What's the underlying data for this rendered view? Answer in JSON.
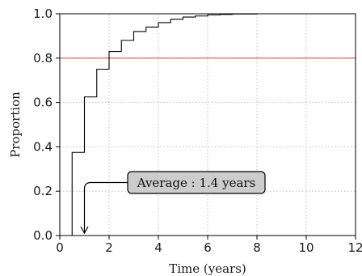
{
  "chart_data": {
    "type": "line",
    "subtype": "step",
    "xlabel": "Time (years)",
    "ylabel": "Proportion",
    "xlim": [
      0,
      12
    ],
    "ylim": [
      0,
      1
    ],
    "xticks": [
      0,
      2,
      4,
      6,
      8,
      10,
      12
    ],
    "yticks": [
      0.0,
      0.2,
      0.4,
      0.6,
      0.8,
      1.0
    ],
    "ytick_labels": [
      "0.0",
      "0.2",
      "0.4",
      "0.6",
      "0.8",
      "1.0"
    ],
    "grid": true,
    "series": [
      {
        "color": "#000000",
        "x": [
          0.5,
          1.0,
          1.5,
          2.0,
          2.5,
          3.0,
          3.5,
          4.0,
          4.5,
          5.0,
          5.5,
          6.0,
          6.5,
          7.0,
          8.0
        ],
        "y": [
          0.375,
          0.625,
          0.75,
          0.83,
          0.88,
          0.92,
          0.94,
          0.96,
          0.975,
          0.985,
          0.99,
          0.995,
          0.997,
          0.999,
          1.0
        ]
      }
    ],
    "reference_line": {
      "y": 0.8,
      "color": "#e05050"
    },
    "annotation": {
      "text": "Average : 1.4 years",
      "arrow_target_x": 1.0,
      "arrow_target_y": 0.0,
      "box_color": "#cccccc"
    }
  }
}
